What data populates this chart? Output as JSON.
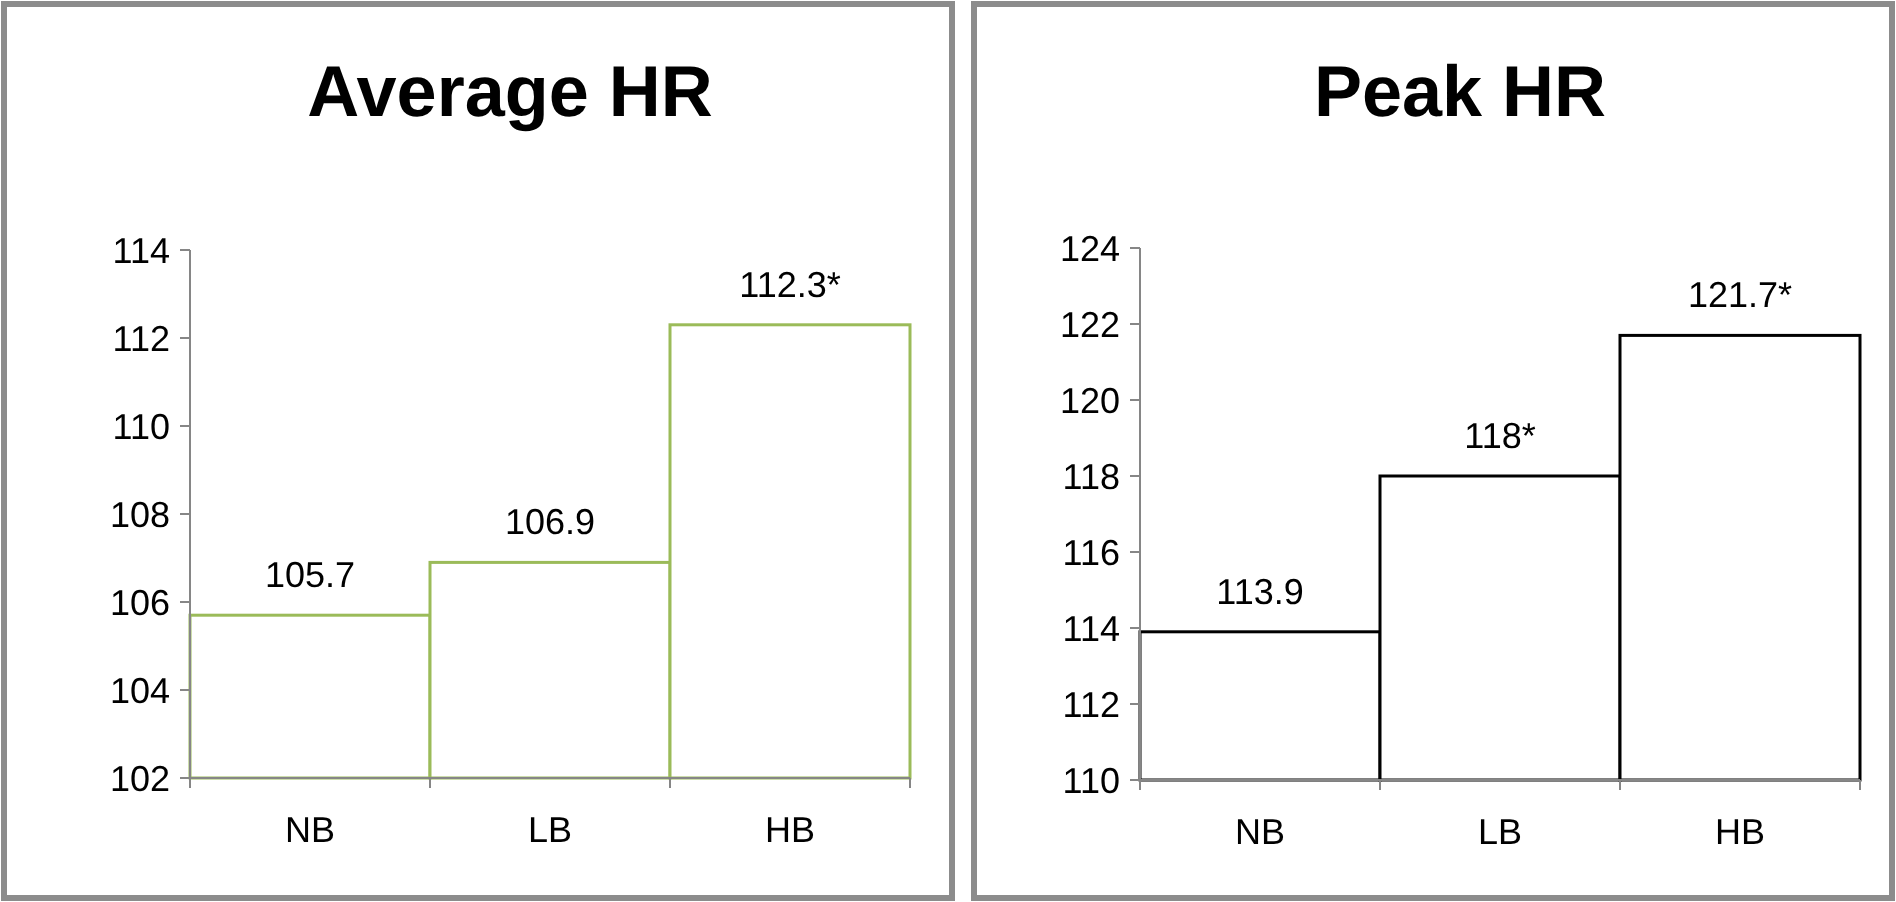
{
  "chart_data": [
    {
      "type": "bar",
      "title": "Average HR",
      "categories": [
        "NB",
        "LB",
        "HB"
      ],
      "values": [
        105.7,
        106.9,
        112.3
      ],
      "value_labels": [
        "105.7",
        "106.9",
        "112.3*"
      ],
      "color": "#9bbb59",
      "ylim": [
        102,
        114
      ],
      "yticks": [
        102,
        104,
        106,
        108,
        110,
        112,
        114
      ]
    },
    {
      "type": "bar",
      "title": "Peak HR",
      "categories": [
        "NB",
        "LB",
        "HB"
      ],
      "values": [
        113.9,
        118,
        121.7
      ],
      "value_labels": [
        "113.9",
        "118*",
        "121.7*"
      ],
      "color": "#000000",
      "ylim": [
        110,
        124
      ],
      "yticks": [
        110,
        112,
        114,
        116,
        118,
        120,
        122,
        124
      ]
    }
  ]
}
